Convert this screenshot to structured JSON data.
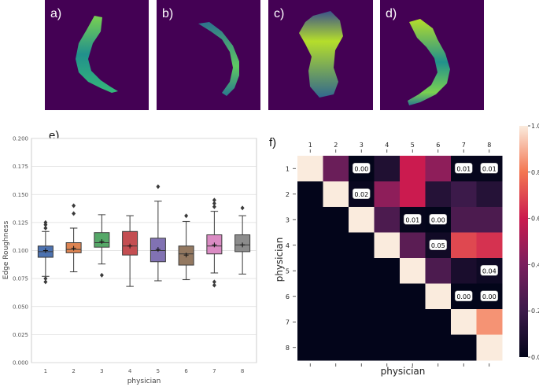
{
  "panels": {
    "a": "a)",
    "b": "b)",
    "c": "c)",
    "d": "d)",
    "e": "e)",
    "f": "f)"
  },
  "colors": {
    "image_background": "#440154",
    "box_colors": [
      "#4c72b0",
      "#dd8452",
      "#55a868",
      "#c44e52",
      "#8172b3",
      "#937860",
      "#da8bc3",
      "#8c8c8c"
    ]
  },
  "chart_data": [
    {
      "type": "box",
      "panel": "e)",
      "ylabel": "Edge Roughness",
      "xlabel": "physician",
      "categories": [
        "1",
        "2",
        "3",
        "4",
        "5",
        "6",
        "7",
        "8"
      ],
      "ylim": [
        0.0,
        0.2
      ],
      "yticks": [
        "0.000",
        "0.025",
        "0.050",
        "0.075",
        "0.100",
        "0.125",
        "0.150",
        "0.175",
        "0.200"
      ],
      "grid": true,
      "boxes": [
        {
          "whislo": 0.077,
          "q1": 0.094,
          "med": 0.099,
          "mean": 0.1,
          "q3": 0.104,
          "whishi": 0.117,
          "fliers": [
            0.072,
            0.075,
            0.12,
            0.123,
            0.125
          ]
        },
        {
          "whislo": 0.081,
          "q1": 0.098,
          "med": 0.101,
          "mean": 0.102,
          "q3": 0.107,
          "whishi": 0.12,
          "fliers": [
            0.133,
            0.14
          ]
        },
        {
          "whislo": 0.088,
          "q1": 0.103,
          "med": 0.107,
          "mean": 0.108,
          "q3": 0.116,
          "whishi": 0.132,
          "fliers": [
            0.078
          ]
        },
        {
          "whislo": 0.068,
          "q1": 0.096,
          "med": 0.104,
          "mean": 0.104,
          "q3": 0.117,
          "whishi": 0.131,
          "fliers": []
        },
        {
          "whislo": 0.073,
          "q1": 0.09,
          "med": 0.1,
          "mean": 0.101,
          "q3": 0.111,
          "whishi": 0.144,
          "fliers": [
            0.157
          ]
        },
        {
          "whislo": 0.074,
          "q1": 0.087,
          "med": 0.097,
          "mean": 0.096,
          "q3": 0.104,
          "whishi": 0.126,
          "fliers": [
            0.131
          ]
        },
        {
          "whislo": 0.08,
          "q1": 0.097,
          "med": 0.104,
          "mean": 0.105,
          "q3": 0.114,
          "whishi": 0.135,
          "fliers": [
            0.069,
            0.072,
            0.139,
            0.142,
            0.145
          ]
        },
        {
          "whislo": 0.079,
          "q1": 0.099,
          "med": 0.105,
          "mean": 0.105,
          "q3": 0.114,
          "whishi": 0.131,
          "fliers": [
            0.138
          ]
        }
      ]
    },
    {
      "type": "heatmap",
      "panel": "f)",
      "xlabel": "physician",
      "ylabel": "physician",
      "labels": [
        "1",
        "2",
        "3",
        "4",
        "5",
        "6",
        "7",
        "8"
      ],
      "colorbar": {
        "min": 0.0,
        "max": 1.0,
        "ticks": [
          "0.0",
          "0.2",
          "0.4",
          "0.6",
          "0.8",
          "1.0"
        ]
      },
      "values": [
        [
          1.0,
          0.35,
          0.0,
          0.1,
          0.6,
          0.45,
          0.01,
          0.01
        ],
        [
          0.0,
          1.0,
          0.02,
          0.45,
          0.6,
          0.12,
          0.2,
          0.12
        ],
        [
          0.0,
          0.0,
          1.0,
          0.25,
          0.01,
          0.0,
          0.25,
          0.25
        ],
        [
          0.0,
          0.0,
          0.0,
          1.0,
          0.3,
          0.05,
          0.7,
          0.65
        ],
        [
          0.0,
          0.0,
          0.0,
          0.0,
          1.0,
          0.25,
          0.08,
          0.04
        ],
        [
          0.0,
          0.0,
          0.0,
          0.0,
          0.0,
          1.0,
          0.0,
          0.0
        ],
        [
          0.0,
          0.0,
          0.0,
          0.0,
          0.0,
          0.0,
          1.0,
          0.85
        ],
        [
          0.0,
          0.0,
          0.0,
          0.0,
          0.0,
          0.0,
          0.0,
          1.0
        ]
      ],
      "annotations": [
        {
          "row": 0,
          "col": 2,
          "text": "0.00"
        },
        {
          "row": 0,
          "col": 6,
          "text": "0.01"
        },
        {
          "row": 0,
          "col": 7,
          "text": "0.01"
        },
        {
          "row": 1,
          "col": 2,
          "text": "0.02"
        },
        {
          "row": 2,
          "col": 4,
          "text": "0.01"
        },
        {
          "row": 2,
          "col": 5,
          "text": "0.00"
        },
        {
          "row": 3,
          "col": 5,
          "text": "0.05"
        },
        {
          "row": 4,
          "col": 7,
          "text": "0.04"
        },
        {
          "row": 5,
          "col": 6,
          "text": "0.00"
        },
        {
          "row": 5,
          "col": 7,
          "text": "0.00"
        }
      ]
    }
  ]
}
